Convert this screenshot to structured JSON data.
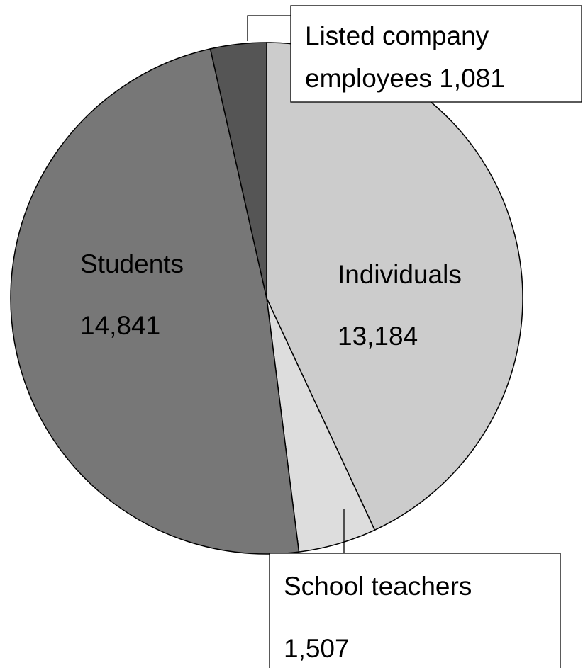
{
  "chart_data": {
    "type": "pie",
    "title": "",
    "start_angle_deg": 0,
    "direction": "clockwise",
    "slices": [
      {
        "label": "Individuals",
        "value": 13184,
        "value_label": "13,184",
        "color": "#cccccc"
      },
      {
        "label": "School teachers",
        "value": 1507,
        "value_label": "1,507",
        "color": "#dddddd"
      },
      {
        "label": "Students",
        "value": 14841,
        "value_label": "14,841",
        "color": "#777777"
      },
      {
        "label": "Listed company employees",
        "value": 1081,
        "value_label": "1,081",
        "color": "#555555"
      }
    ],
    "callout_lines": {
      "listed": [
        "Listed company",
        "employees 1,081"
      ]
    }
  }
}
